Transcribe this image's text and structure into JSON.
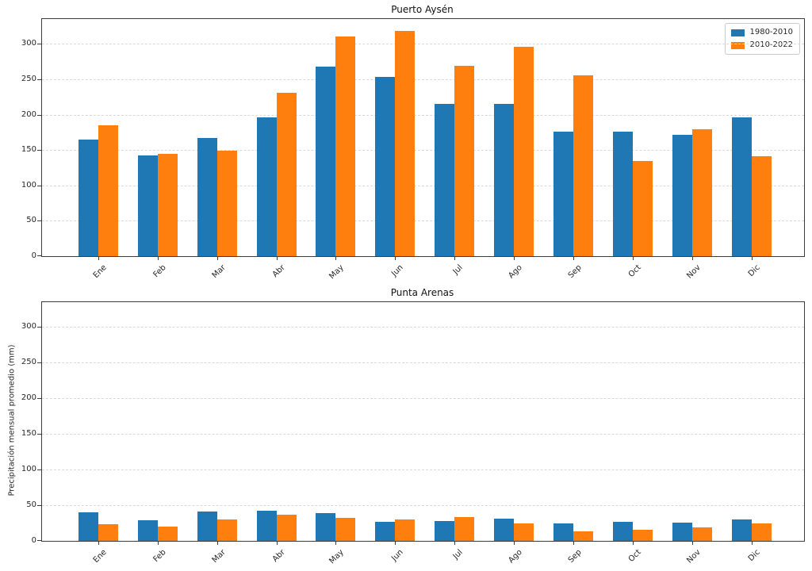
{
  "figure": {
    "background": "#ffffff",
    "spine_color": "#3c3c3c",
    "grid_color": "#d9d9d9",
    "text_color": "#262626"
  },
  "ylabel": "Precipitación mensual promedio (mm)",
  "legend": {
    "position": "upper-right",
    "items": [
      {
        "label": "1980-2010",
        "color": "#1f77b4"
      },
      {
        "label": "2010-2022",
        "color": "#ff7f0e"
      }
    ]
  },
  "chart_data": [
    {
      "type": "bar",
      "title": "Puerto Aysén",
      "categories": [
        "Ene",
        "Feb",
        "Mar",
        "Abr",
        "May",
        "Jun",
        "Jul",
        "Ago",
        "Sep",
        "Oct",
        "Nov",
        "Dic"
      ],
      "series": [
        {
          "name": "1980-2010",
          "color": "#1f77b4",
          "values": [
            165,
            142,
            167,
            196,
            268,
            253,
            215,
            215,
            176,
            176,
            171,
            196
          ]
        },
        {
          "name": "2010-2022",
          "color": "#ff7f0e",
          "values": [
            185,
            145,
            149,
            231,
            310,
            318,
            269,
            296,
            255,
            135,
            179,
            141
          ]
        }
      ],
      "xlabel": "",
      "ylabel": "",
      "ylim": [
        0,
        335
      ],
      "yticks": [
        0,
        50,
        100,
        150,
        200,
        250,
        300
      ],
      "grid": "horizontal-dashed",
      "legend_position": "upper-right"
    },
    {
      "type": "bar",
      "title": "Punta Arenas",
      "categories": [
        "Ene",
        "Feb",
        "Mar",
        "Abr",
        "May",
        "Jun",
        "Jul",
        "Ago",
        "Sep",
        "Oct",
        "Nov",
        "Dic"
      ],
      "series": [
        {
          "name": "1980-2010",
          "color": "#1f77b4",
          "values": [
            40,
            29,
            41,
            42,
            39,
            27,
            28,
            31,
            25,
            27,
            26,
            30
          ]
        },
        {
          "name": "2010-2022",
          "color": "#ff7f0e",
          "values": [
            23,
            20,
            30,
            37,
            32,
            30,
            33,
            24,
            13,
            16,
            19,
            24
          ]
        }
      ],
      "xlabel": "",
      "ylabel": "Precipitación mensual promedio (mm)",
      "ylim": [
        0,
        335
      ],
      "yticks": [
        0,
        50,
        100,
        150,
        200,
        250,
        300
      ],
      "grid": "horizontal-dashed",
      "legend_position": "none"
    }
  ]
}
